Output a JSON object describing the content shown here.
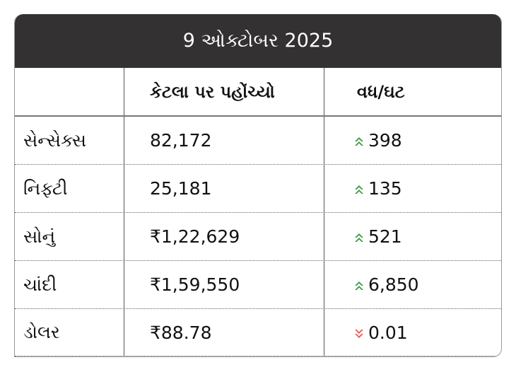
{
  "title": "9 ઓક્ટોબર 2025",
  "headers": {
    "name": "",
    "value": "કેટલા પર પહોંચ્યો",
    "change": "વધ/ઘટ"
  },
  "colors": {
    "up": "#3a9a3e",
    "down": "#f0524a",
    "header_bg": "#333132"
  },
  "rows": [
    {
      "name": "સેન્સેક્સ",
      "value": "82,172",
      "change": "398",
      "direction": "up"
    },
    {
      "name": "નિફ્ટી",
      "value": "25,181",
      "change": "135",
      "direction": "up"
    },
    {
      "name": "સોનું",
      "value": "₹1,22,629",
      "change": "521",
      "direction": "up"
    },
    {
      "name": "ચાંદી",
      "value": "₹1,59,550",
      "change": "6,850",
      "direction": "up"
    },
    {
      "name": "ડોલર",
      "value": "₹88.78",
      "change": "0.01",
      "direction": "down"
    }
  ]
}
